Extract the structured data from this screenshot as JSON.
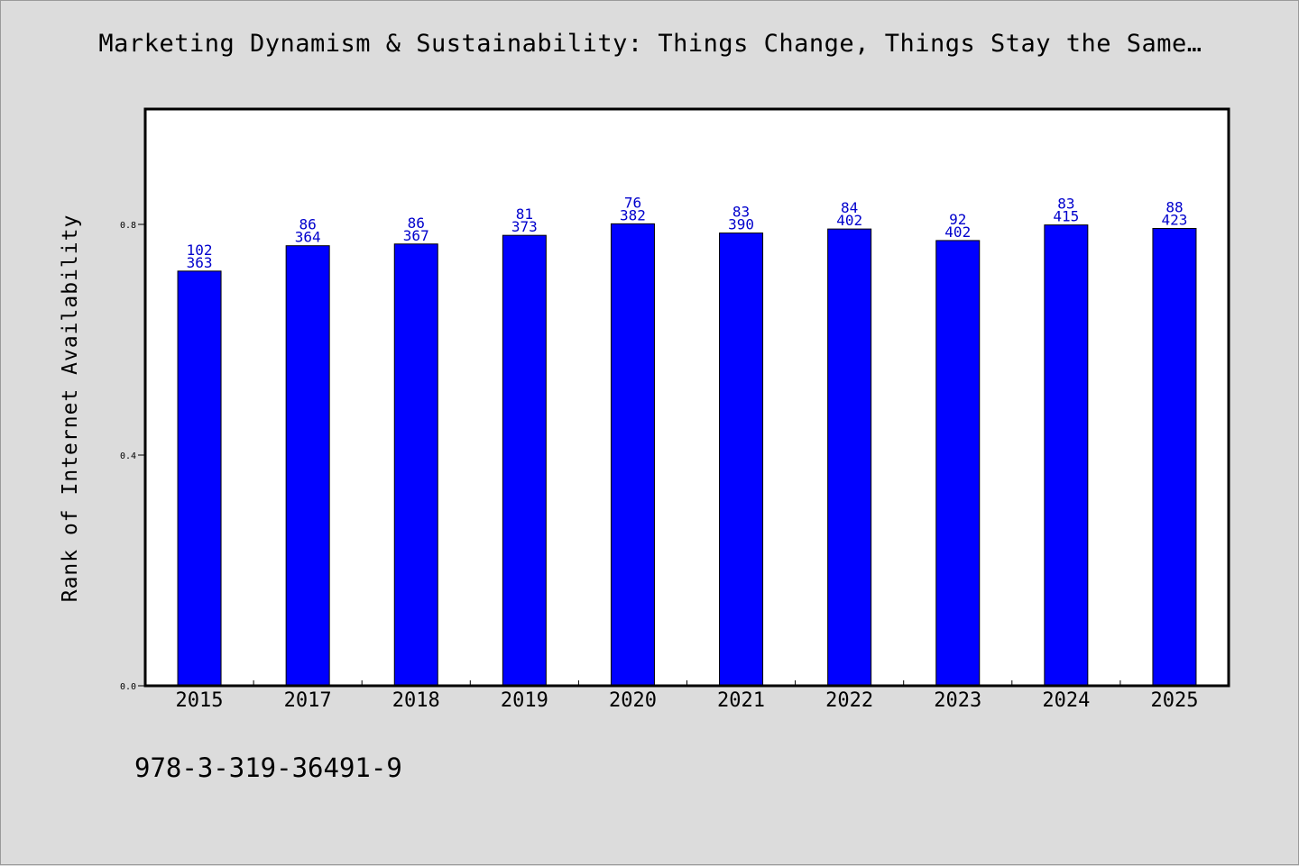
{
  "title": "Marketing Dynamism & Sustainability: Things Change, Things Stay the Same…",
  "footer_text": "978-3-319-36491-9",
  "colors": {
    "bar": "#0000ff",
    "label": "#0000cc",
    "background": "#dcdcdc",
    "plot": "#ffffff"
  },
  "chart_data": {
    "type": "bar",
    "title": "Marketing Dynamism & Sustainability: Things Change, Things Stay the Same…",
    "xlabel": "",
    "ylabel": "Rank of Internet Availability",
    "ylim": [
      0,
      1.0
    ],
    "yticks": [
      0.0,
      0.4,
      0.8
    ],
    "ytick_labels": [
      "0.0",
      "0.4",
      "0.8"
    ],
    "grid": false,
    "categories": [
      "2015",
      "2017",
      "2018",
      "2019",
      "2020",
      "2021",
      "2022",
      "2023",
      "2024",
      "2025"
    ],
    "values": [
      0.719,
      0.763,
      0.766,
      0.781,
      0.801,
      0.785,
      0.792,
      0.772,
      0.799,
      0.793
    ],
    "labels_top": [
      "102",
      "86",
      "86",
      "81",
      "76",
      "83",
      "84",
      "92",
      "83",
      "88"
    ],
    "labels_bottom": [
      "363",
      "364",
      "367",
      "373",
      "382",
      "390",
      "402",
      "402",
      "415",
      "423"
    ]
  }
}
